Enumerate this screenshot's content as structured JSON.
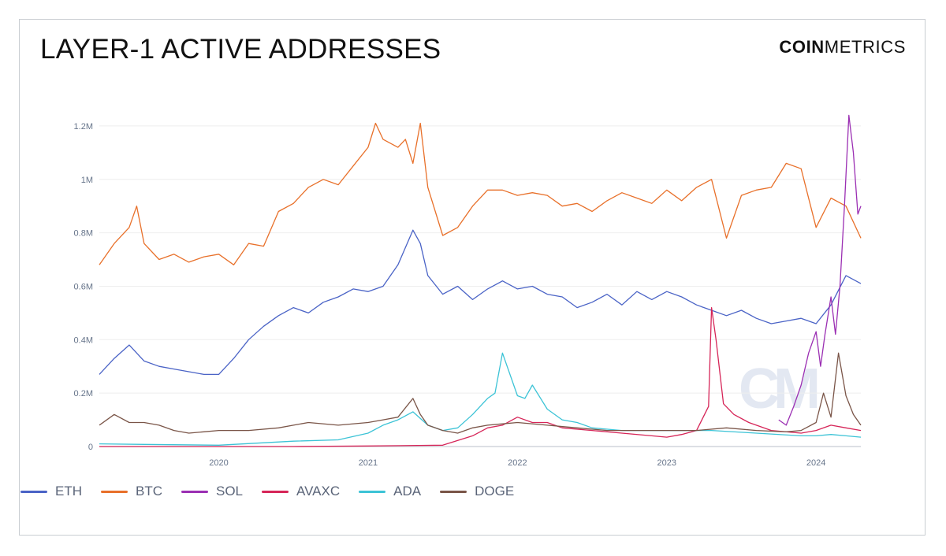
{
  "title": "LAYER-1 ACTIVE ADDRESSES",
  "logo": {
    "bold": "COIN",
    "light": "METRICS"
  },
  "watermark": "CM",
  "colors": {
    "ETH": "#4a63c6",
    "BTC": "#e8702a",
    "SOL": "#9b2fb3",
    "AVAXC": "#d62558",
    "ADA": "#3cc3d6",
    "DOGE": "#7a5548",
    "grid": "#eeeeee",
    "axis": "#c8ccd4"
  },
  "chart_data": {
    "type": "line",
    "title": "LAYER-1 ACTIVE ADDRESSES",
    "xlabel": "",
    "ylabel": "",
    "xlim": [
      2019.2,
      2024.3
    ],
    "ylim": [
      0,
      1300000
    ],
    "y_ticks": [
      0,
      200000,
      400000,
      600000,
      800000,
      1000000,
      1200000
    ],
    "y_tick_labels": [
      "0",
      "0.2M",
      "0.4M",
      "0.6M",
      "0.8M",
      "1M",
      "1.2M"
    ],
    "x_ticks": [
      2020,
      2021,
      2022,
      2023,
      2024
    ],
    "x_tick_labels": [
      "2020",
      "2021",
      "2022",
      "2023",
      "2024"
    ],
    "grid": true,
    "legend": "bottom-left",
    "series": [
      {
        "name": "ETH",
        "x": [
          2019.2,
          2019.3,
          2019.4,
          2019.5,
          2019.6,
          2019.7,
          2019.8,
          2019.9,
          2020.0,
          2020.1,
          2020.2,
          2020.3,
          2020.4,
          2020.5,
          2020.6,
          2020.7,
          2020.8,
          2020.9,
          2021.0,
          2021.1,
          2021.2,
          2021.3,
          2021.35,
          2021.4,
          2021.5,
          2021.6,
          2021.7,
          2021.8,
          2021.9,
          2022.0,
          2022.1,
          2022.2,
          2022.3,
          2022.4,
          2022.5,
          2022.6,
          2022.7,
          2022.8,
          2022.9,
          2023.0,
          2023.1,
          2023.2,
          2023.3,
          2023.4,
          2023.5,
          2023.6,
          2023.7,
          2023.8,
          2023.9,
          2024.0,
          2024.1,
          2024.2,
          2024.3
        ],
        "values": [
          270000,
          330000,
          380000,
          320000,
          300000,
          290000,
          280000,
          270000,
          270000,
          330000,
          400000,
          450000,
          490000,
          520000,
          500000,
          540000,
          560000,
          590000,
          580000,
          600000,
          680000,
          810000,
          760000,
          640000,
          570000,
          600000,
          550000,
          590000,
          620000,
          590000,
          600000,
          570000,
          560000,
          520000,
          540000,
          570000,
          530000,
          580000,
          550000,
          580000,
          560000,
          530000,
          510000,
          490000,
          510000,
          480000,
          460000,
          470000,
          480000,
          460000,
          530000,
          640000,
          610000
        ]
      },
      {
        "name": "BTC",
        "x": [
          2019.2,
          2019.3,
          2019.4,
          2019.45,
          2019.5,
          2019.6,
          2019.7,
          2019.8,
          2019.9,
          2020.0,
          2020.1,
          2020.2,
          2020.3,
          2020.4,
          2020.5,
          2020.6,
          2020.7,
          2020.8,
          2020.9,
          2021.0,
          2021.05,
          2021.1,
          2021.2,
          2021.25,
          2021.3,
          2021.35,
          2021.4,
          2021.5,
          2021.6,
          2021.7,
          2021.8,
          2021.9,
          2022.0,
          2022.1,
          2022.2,
          2022.3,
          2022.4,
          2022.5,
          2022.6,
          2022.7,
          2022.8,
          2022.9,
          2023.0,
          2023.1,
          2023.2,
          2023.3,
          2023.4,
          2023.5,
          2023.6,
          2023.7,
          2023.8,
          2023.9,
          2024.0,
          2024.1,
          2024.2,
          2024.3
        ],
        "values": [
          680000,
          760000,
          820000,
          900000,
          760000,
          700000,
          720000,
          690000,
          710000,
          720000,
          680000,
          760000,
          750000,
          880000,
          910000,
          970000,
          1000000,
          980000,
          1050000,
          1120000,
          1210000,
          1150000,
          1120000,
          1150000,
          1060000,
          1210000,
          970000,
          790000,
          820000,
          900000,
          960000,
          960000,
          940000,
          950000,
          940000,
          900000,
          910000,
          880000,
          920000,
          950000,
          930000,
          910000,
          960000,
          920000,
          970000,
          1000000,
          780000,
          940000,
          960000,
          970000,
          1060000,
          1040000,
          820000,
          930000,
          900000,
          780000
        ]
      },
      {
        "name": "SOL",
        "x": [
          2023.75,
          2023.8,
          2023.85,
          2023.9,
          2023.95,
          2024.0,
          2024.03,
          2024.06,
          2024.1,
          2024.13,
          2024.16,
          2024.19,
          2024.22,
          2024.25,
          2024.28,
          2024.3
        ],
        "values": [
          100000,
          80000,
          150000,
          230000,
          350000,
          430000,
          300000,
          420000,
          560000,
          420000,
          600000,
          900000,
          1240000,
          1100000,
          870000,
          900000
        ]
      },
      {
        "name": "AVAXC",
        "x": [
          2019.2,
          2020.5,
          2021.0,
          2021.5,
          2021.7,
          2021.8,
          2021.9,
          2022.0,
          2022.1,
          2022.2,
          2022.3,
          2022.5,
          2022.7,
          2022.9,
          2023.0,
          2023.1,
          2023.2,
          2023.28,
          2023.3,
          2023.33,
          2023.38,
          2023.45,
          2023.55,
          2023.7,
          2023.9,
          2024.0,
          2024.1,
          2024.2,
          2024.3
        ],
        "values": [
          0,
          0,
          2000,
          5000,
          40000,
          70000,
          80000,
          110000,
          90000,
          90000,
          70000,
          60000,
          50000,
          40000,
          35000,
          45000,
          60000,
          150000,
          520000,
          400000,
          160000,
          120000,
          90000,
          60000,
          50000,
          60000,
          80000,
          70000,
          60000
        ]
      },
      {
        "name": "ADA",
        "x": [
          2019.2,
          2019.5,
          2020.0,
          2020.5,
          2020.8,
          2021.0,
          2021.1,
          2021.2,
          2021.3,
          2021.4,
          2021.5,
          2021.6,
          2021.7,
          2021.8,
          2021.85,
          2021.9,
          2022.0,
          2022.05,
          2022.1,
          2022.2,
          2022.3,
          2022.4,
          2022.5,
          2022.7,
          2023.0,
          2023.3,
          2023.6,
          2023.9,
          2024.0,
          2024.1,
          2024.2,
          2024.3
        ],
        "values": [
          10000,
          8000,
          5000,
          20000,
          25000,
          50000,
          80000,
          100000,
          130000,
          80000,
          60000,
          70000,
          120000,
          180000,
          200000,
          350000,
          190000,
          180000,
          230000,
          140000,
          100000,
          90000,
          70000,
          60000,
          60000,
          60000,
          50000,
          40000,
          40000,
          45000,
          40000,
          35000
        ]
      },
      {
        "name": "DOGE",
        "x": [
          2019.2,
          2019.3,
          2019.4,
          2019.5,
          2019.6,
          2019.7,
          2019.8,
          2019.9,
          2020.0,
          2020.2,
          2020.4,
          2020.5,
          2020.6,
          2020.8,
          2021.0,
          2021.1,
          2021.2,
          2021.3,
          2021.35,
          2021.4,
          2021.5,
          2021.6,
          2021.7,
          2021.8,
          2022.0,
          2022.2,
          2022.4,
          2022.6,
          2022.8,
          2023.0,
          2023.2,
          2023.4,
          2023.6,
          2023.8,
          2023.9,
          2024.0,
          2024.05,
          2024.1,
          2024.15,
          2024.2,
          2024.25,
          2024.3
        ],
        "values": [
          80000,
          120000,
          90000,
          90000,
          80000,
          60000,
          50000,
          55000,
          60000,
          60000,
          70000,
          80000,
          90000,
          80000,
          90000,
          100000,
          110000,
          180000,
          120000,
          80000,
          60000,
          50000,
          70000,
          80000,
          90000,
          80000,
          70000,
          60000,
          60000,
          60000,
          60000,
          70000,
          60000,
          55000,
          60000,
          90000,
          200000,
          110000,
          350000,
          190000,
          120000,
          80000
        ]
      }
    ]
  }
}
